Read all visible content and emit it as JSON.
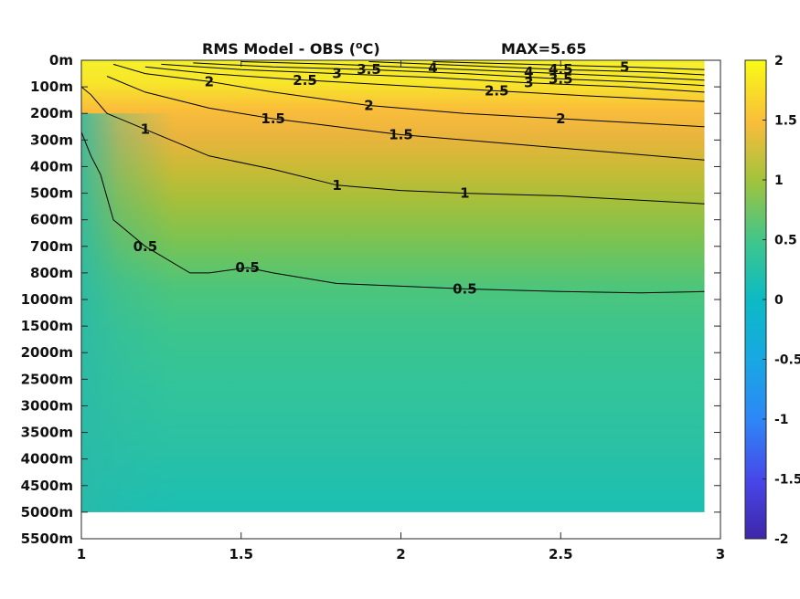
{
  "chart_data": {
    "type": "heatmap",
    "title": "RMS Model - OBS (",
    "title_unit": "o",
    "title_unit_tail": "C)",
    "max_label": "MAX=5.65",
    "x_ticks": [
      "1",
      "1.5",
      "2",
      "2.5",
      "3"
    ],
    "x_range": [
      1,
      3
    ],
    "x_data_max": 2.95,
    "y_ticks": [
      "0m",
      "100m",
      "200m",
      "300m",
      "400m",
      "500m",
      "600m",
      "700m",
      "800m",
      "1000m",
      "1500m",
      "2000m",
      "2500m",
      "3000m",
      "3500m",
      "4000m",
      "4500m",
      "5000m",
      "5500m"
    ],
    "y_data_max_label": "5000m",
    "colorbar": {
      "range": [
        -2,
        2
      ],
      "ticks": [
        "2",
        "1.5",
        "1",
        "0.5",
        "0",
        "-0.5",
        "-1",
        "-1.5",
        "-2"
      ],
      "colormap": "parula"
    },
    "contours": [
      {
        "level": 0.5,
        "labels": [
          "0.5",
          "0.5",
          "0.5"
        ],
        "points": [
          [
            1.0,
            2.7
          ],
          [
            1.03,
            3.6
          ],
          [
            1.06,
            4.3
          ],
          [
            1.1,
            6.0
          ],
          [
            1.2,
            7.0
          ],
          [
            1.34,
            8.0
          ],
          [
            1.4,
            8.0
          ],
          [
            1.52,
            7.8
          ],
          [
            1.6,
            8.0
          ],
          [
            1.8,
            8.4
          ],
          [
            2.0,
            8.5
          ],
          [
            2.2,
            8.6
          ],
          [
            2.5,
            8.7
          ],
          [
            2.75,
            8.75
          ],
          [
            2.95,
            8.7
          ]
        ]
      },
      {
        "level": 1,
        "labels": [
          "1",
          "1",
          "1"
        ],
        "points": [
          [
            1.0,
            1.0
          ],
          [
            1.03,
            1.3
          ],
          [
            1.08,
            2.0
          ],
          [
            1.2,
            2.6
          ],
          [
            1.4,
            3.6
          ],
          [
            1.6,
            4.1
          ],
          [
            1.8,
            4.7
          ],
          [
            2.0,
            4.9
          ],
          [
            2.2,
            5.0
          ],
          [
            2.5,
            5.1
          ],
          [
            2.8,
            5.3
          ],
          [
            2.95,
            5.4
          ]
        ]
      },
      {
        "level": 1.5,
        "labels": [
          "1.5",
          "1.5"
        ],
        "points": [
          [
            1.08,
            0.6
          ],
          [
            1.2,
            1.2
          ],
          [
            1.4,
            1.8
          ],
          [
            1.6,
            2.2
          ],
          [
            1.8,
            2.5
          ],
          [
            2.0,
            2.8
          ],
          [
            2.3,
            3.1
          ],
          [
            2.6,
            3.4
          ],
          [
            2.95,
            3.75
          ]
        ]
      },
      {
        "level": 2,
        "labels": [
          "2",
          "2",
          "2"
        ],
        "points": [
          [
            1.1,
            0.15
          ],
          [
            1.2,
            0.5
          ],
          [
            1.4,
            0.8
          ],
          [
            1.6,
            1.2
          ],
          [
            1.9,
            1.7
          ],
          [
            2.2,
            2.0
          ],
          [
            2.5,
            2.2
          ],
          [
            2.8,
            2.4
          ],
          [
            2.95,
            2.5
          ]
        ]
      },
      {
        "level": 2.5,
        "labels": [
          "2.5",
          "2.5"
        ],
        "points": [
          [
            1.2,
            0.25
          ],
          [
            1.4,
            0.5
          ],
          [
            1.7,
            0.75
          ],
          [
            2.0,
            0.95
          ],
          [
            2.3,
            1.15
          ],
          [
            2.6,
            1.35
          ],
          [
            2.95,
            1.55
          ]
        ]
      },
      {
        "level": 3,
        "labels": [
          "3",
          "3"
        ],
        "points": [
          [
            1.25,
            0.15
          ],
          [
            1.5,
            0.35
          ],
          [
            1.8,
            0.5
          ],
          [
            2.1,
            0.65
          ],
          [
            2.4,
            0.85
          ],
          [
            2.7,
            1.0
          ],
          [
            2.95,
            1.2
          ]
        ]
      },
      {
        "level": 3.5,
        "labels": [
          "3.5",
          "3.5"
        ],
        "points": [
          [
            1.35,
            0.1
          ],
          [
            1.6,
            0.25
          ],
          [
            1.9,
            0.35
          ],
          [
            2.2,
            0.5
          ],
          [
            2.5,
            0.7
          ],
          [
            2.8,
            0.85
          ],
          [
            2.95,
            0.95
          ]
        ]
      },
      {
        "level": 4,
        "labels": [
          "4",
          "4"
        ],
        "points": [
          [
            1.5,
            0.05
          ],
          [
            1.8,
            0.15
          ],
          [
            2.1,
            0.3
          ],
          [
            2.4,
            0.45
          ],
          [
            2.7,
            0.6
          ],
          [
            2.95,
            0.75
          ]
        ]
      },
      {
        "level": 4.5,
        "labels": [
          "4.5"
        ],
        "points": [
          [
            1.9,
            0.05
          ],
          [
            2.2,
            0.2
          ],
          [
            2.5,
            0.35
          ],
          [
            2.8,
            0.45
          ],
          [
            2.95,
            0.55
          ]
        ]
      },
      {
        "level": 5,
        "labels": [
          "5"
        ],
        "points": [
          [
            2.1,
            0.05
          ],
          [
            2.4,
            0.15
          ],
          [
            2.7,
            0.25
          ],
          [
            2.95,
            0.35
          ]
        ]
      }
    ]
  }
}
